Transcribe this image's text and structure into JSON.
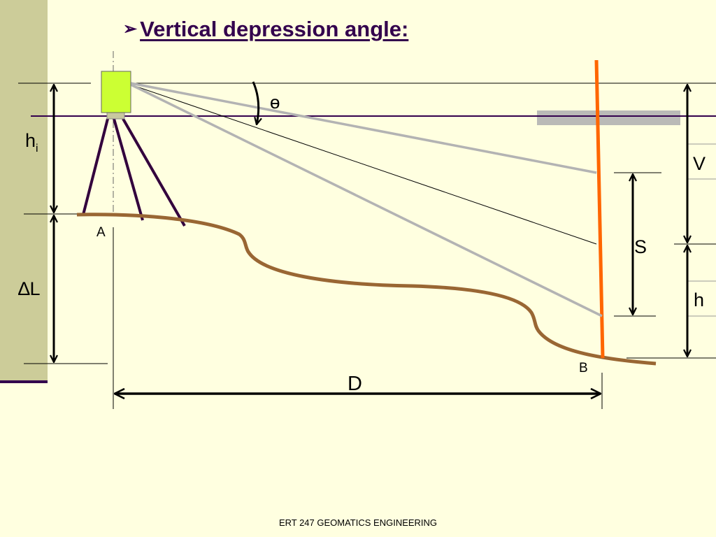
{
  "slide": {
    "title": "Vertical depression angle:",
    "footer": "ERT 247 GEOMATICS ENGINEERING"
  },
  "diagram": {
    "labels": {
      "theta": "ɵ",
      "hi_main": "h",
      "hi_sub": "i",
      "delta": "∆",
      "l": "L",
      "point_a": "A",
      "point_b": "B",
      "distance": "D",
      "vertical": "V",
      "slope": "S",
      "height": "h"
    },
    "colors": {
      "background": "#ffffe0",
      "title": "#33004d",
      "side_panel": "#cccc99",
      "ground": "#996633",
      "staff": "#ff6600",
      "instrument": "#ccff33",
      "tripod": "#33003d",
      "sight_lines": "#b3b3b3"
    }
  }
}
